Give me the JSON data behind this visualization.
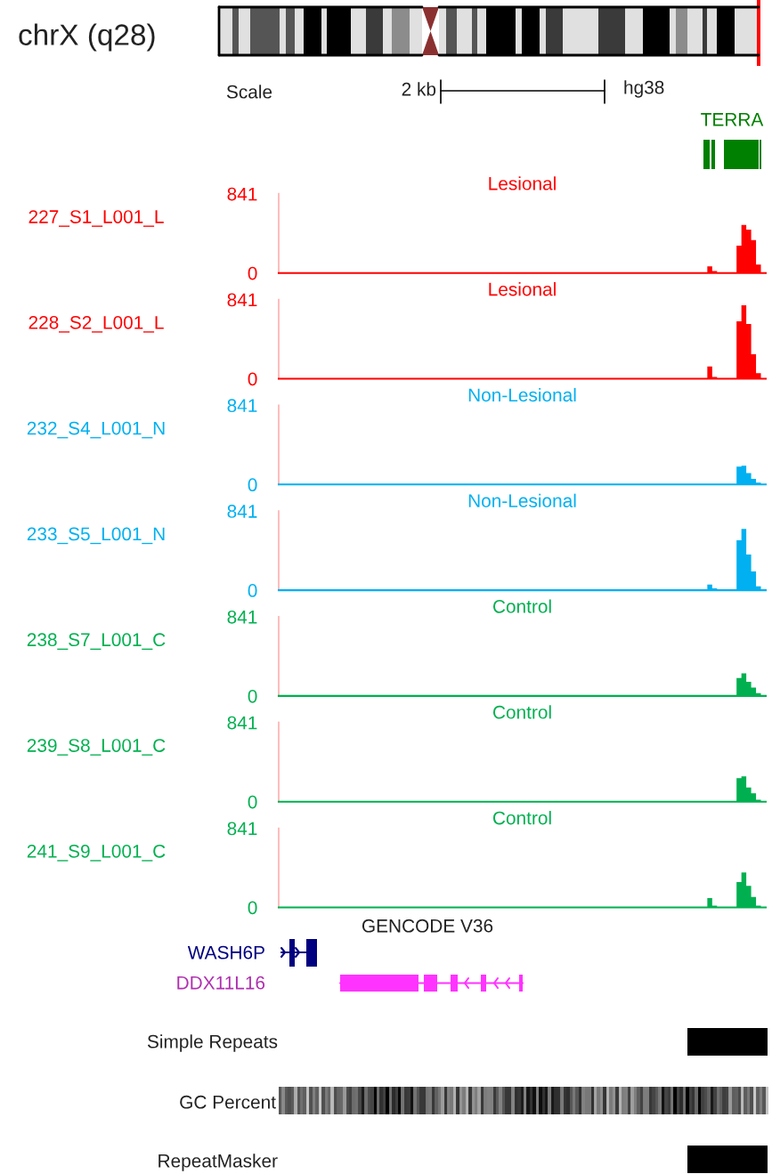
{
  "chart_data": [
    {
      "type": "other",
      "title": "chrX (q28)",
      "annotations": [
        "Scale",
        "2 kb",
        "hg38",
        "TERRA"
      ]
    },
    {
      "type": "area",
      "title": "Lesional",
      "ylabel": "227_S1_L001_L",
      "tick_labels": "y",
      "ylim": [
        0,
        841
      ],
      "yticks": [
        0,
        841
      ],
      "categories": [
        null,
        null,
        null,
        null,
        null,
        null,
        null,
        null,
        null,
        null,
        null,
        null,
        null,
        null,
        null,
        null,
        null,
        null,
        null,
        null,
        null,
        null,
        null,
        null,
        null,
        null,
        null,
        null,
        null,
        null,
        null,
        null,
        null,
        null,
        null,
        null,
        null,
        null,
        null,
        null,
        null,
        null,
        null,
        null,
        null,
        null,
        null,
        null,
        null,
        null,
        null,
        null,
        null,
        null,
        null,
        null,
        null,
        null,
        null,
        null,
        null,
        null,
        null,
        null,
        null,
        null,
        null,
        null,
        null,
        null,
        null,
        null,
        null,
        null,
        null,
        null,
        null,
        null,
        null,
        null,
        null,
        null,
        null,
        null,
        null,
        null,
        null,
        null,
        null,
        null,
        null,
        null,
        null,
        null,
        null,
        null,
        null,
        null,
        null,
        null
      ],
      "series": [
        {
          "color": "#ff0000",
          "values": [
            0,
            0,
            0,
            0,
            0,
            0,
            0,
            0,
            0,
            0,
            0,
            0,
            0,
            0,
            0,
            0,
            0,
            0,
            0,
            0,
            0,
            0,
            0,
            0,
            0,
            0,
            0,
            0,
            0,
            0,
            0,
            0,
            0,
            0,
            0,
            0,
            0,
            0,
            0,
            0,
            0,
            0,
            0,
            0,
            0,
            0,
            0,
            0,
            0,
            0,
            0,
            0,
            0,
            0,
            0,
            0,
            0,
            0,
            0,
            0,
            0,
            0,
            0,
            0,
            0,
            0,
            0,
            0,
            0,
            0,
            0,
            0,
            0,
            0,
            0,
            0,
            0,
            0,
            0,
            0,
            0,
            0,
            0,
            0,
            0,
            0,
            0,
            0,
            70,
            20,
            0,
            0,
            0,
            0,
            290,
            510,
            460,
            350,
            90,
            0
          ]
        }
      ]
    },
    {
      "type": "area",
      "title": "Lesional",
      "ylabel": "228_S2_L001_L",
      "tick_labels": "y",
      "ylim": [
        0,
        841
      ],
      "yticks": [
        0,
        841
      ],
      "categories": [
        null,
        null,
        null,
        null,
        null,
        null,
        null,
        null,
        null,
        null,
        null,
        null,
        null,
        null,
        null,
        null,
        null,
        null,
        null,
        null,
        null,
        null,
        null,
        null,
        null,
        null,
        null,
        null,
        null,
        null,
        null,
        null,
        null,
        null,
        null,
        null,
        null,
        null,
        null,
        null,
        null,
        null,
        null,
        null,
        null,
        null,
        null,
        null,
        null,
        null,
        null,
        null,
        null,
        null,
        null,
        null,
        null,
        null,
        null,
        null,
        null,
        null,
        null,
        null,
        null,
        null,
        null,
        null,
        null,
        null,
        null,
        null,
        null,
        null,
        null,
        null,
        null,
        null,
        null,
        null,
        null,
        null,
        null,
        null,
        null,
        null,
        null,
        null,
        null,
        null,
        null,
        null,
        null,
        null,
        null,
        null,
        null,
        null,
        null,
        null
      ],
      "series": [
        {
          "color": "#ff0000",
          "values": [
            0,
            0,
            0,
            0,
            0,
            0,
            0,
            0,
            0,
            0,
            0,
            0,
            0,
            0,
            0,
            0,
            0,
            0,
            0,
            0,
            0,
            0,
            0,
            0,
            0,
            0,
            0,
            0,
            0,
            0,
            0,
            0,
            0,
            0,
            0,
            0,
            0,
            0,
            0,
            0,
            0,
            0,
            0,
            0,
            0,
            0,
            0,
            0,
            0,
            0,
            0,
            0,
            0,
            0,
            0,
            0,
            0,
            0,
            0,
            0,
            0,
            0,
            0,
            0,
            0,
            0,
            0,
            0,
            0,
            0,
            0,
            0,
            0,
            0,
            0,
            0,
            0,
            0,
            0,
            0,
            0,
            0,
            0,
            0,
            0,
            0,
            0,
            0,
            130,
            20,
            0,
            0,
            0,
            0,
            610,
            780,
            580,
            260,
            60,
            0
          ]
        }
      ]
    },
    {
      "type": "area",
      "title": "Non-Lesional",
      "ylabel": "232_S4_L001_N",
      "tick_labels": "y",
      "ylim": [
        0,
        841
      ],
      "yticks": [
        0,
        841
      ],
      "categories": [
        null,
        null,
        null,
        null,
        null,
        null,
        null,
        null,
        null,
        null,
        null,
        null,
        null,
        null,
        null,
        null,
        null,
        null,
        null,
        null,
        null,
        null,
        null,
        null,
        null,
        null,
        null,
        null,
        null,
        null,
        null,
        null,
        null,
        null,
        null,
        null,
        null,
        null,
        null,
        null,
        null,
        null,
        null,
        null,
        null,
        null,
        null,
        null,
        null,
        null,
        null,
        null,
        null,
        null,
        null,
        null,
        null,
        null,
        null,
        null,
        null,
        null,
        null,
        null,
        null,
        null,
        null,
        null,
        null,
        null,
        null,
        null,
        null,
        null,
        null,
        null,
        null,
        null,
        null,
        null,
        null,
        null,
        null,
        null,
        null,
        null,
        null,
        null,
        null,
        null,
        null,
        null,
        null,
        null,
        null,
        null,
        null,
        null,
        null,
        null
      ],
      "series": [
        {
          "color": "#00b0f0",
          "values": [
            0,
            0,
            0,
            0,
            0,
            0,
            0,
            0,
            0,
            0,
            0,
            0,
            0,
            0,
            0,
            0,
            0,
            0,
            0,
            0,
            0,
            0,
            0,
            0,
            0,
            0,
            0,
            0,
            0,
            0,
            0,
            0,
            0,
            0,
            0,
            0,
            0,
            0,
            0,
            0,
            0,
            0,
            0,
            0,
            0,
            0,
            0,
            0,
            0,
            0,
            0,
            0,
            0,
            0,
            0,
            0,
            0,
            0,
            0,
            0,
            0,
            0,
            0,
            0,
            0,
            0,
            0,
            0,
            0,
            0,
            0,
            0,
            0,
            0,
            0,
            0,
            0,
            0,
            0,
            0,
            0,
            0,
            0,
            0,
            0,
            0,
            0,
            0,
            0,
            0,
            0,
            0,
            0,
            0,
            190,
            200,
            120,
            60,
            20,
            0
          ]
        }
      ]
    },
    {
      "type": "area",
      "title": "Non-Lesional",
      "ylabel": "233_S5_L001_N",
      "tick_labels": "y",
      "ylim": [
        0,
        841
      ],
      "yticks": [
        0,
        841
      ],
      "categories": [
        null,
        null,
        null,
        null,
        null,
        null,
        null,
        null,
        null,
        null,
        null,
        null,
        null,
        null,
        null,
        null,
        null,
        null,
        null,
        null,
        null,
        null,
        null,
        null,
        null,
        null,
        null,
        null,
        null,
        null,
        null,
        null,
        null,
        null,
        null,
        null,
        null,
        null,
        null,
        null,
        null,
        null,
        null,
        null,
        null,
        null,
        null,
        null,
        null,
        null,
        null,
        null,
        null,
        null,
        null,
        null,
        null,
        null,
        null,
        null,
        null,
        null,
        null,
        null,
        null,
        null,
        null,
        null,
        null,
        null,
        null,
        null,
        null,
        null,
        null,
        null,
        null,
        null,
        null,
        null,
        null,
        null,
        null,
        null,
        null,
        null,
        null,
        null,
        null,
        null,
        null,
        null,
        null,
        null,
        null,
        null,
        null,
        null,
        null,
        null
      ],
      "series": [
        {
          "color": "#00b0f0",
          "values": [
            0,
            0,
            0,
            0,
            0,
            0,
            0,
            0,
            0,
            0,
            0,
            0,
            0,
            0,
            0,
            0,
            0,
            0,
            0,
            0,
            0,
            0,
            0,
            0,
            0,
            0,
            0,
            0,
            0,
            0,
            0,
            0,
            0,
            0,
            0,
            0,
            0,
            0,
            0,
            0,
            0,
            0,
            0,
            0,
            0,
            0,
            0,
            0,
            0,
            0,
            0,
            0,
            0,
            0,
            0,
            0,
            0,
            0,
            0,
            0,
            0,
            0,
            0,
            0,
            0,
            0,
            0,
            0,
            0,
            0,
            0,
            0,
            0,
            0,
            0,
            0,
            0,
            0,
            0,
            0,
            0,
            0,
            0,
            0,
            0,
            0,
            0,
            0,
            60,
            20,
            0,
            0,
            0,
            0,
            530,
            650,
            380,
            200,
            40,
            0
          ]
        }
      ]
    },
    {
      "type": "area",
      "title": "Control",
      "ylabel": "238_S7_L001_C",
      "tick_labels": "y",
      "ylim": [
        0,
        841
      ],
      "yticks": [
        0,
        841
      ],
      "categories": [
        null,
        null,
        null,
        null,
        null,
        null,
        null,
        null,
        null,
        null,
        null,
        null,
        null,
        null,
        null,
        null,
        null,
        null,
        null,
        null,
        null,
        null,
        null,
        null,
        null,
        null,
        null,
        null,
        null,
        null,
        null,
        null,
        null,
        null,
        null,
        null,
        null,
        null,
        null,
        null,
        null,
        null,
        null,
        null,
        null,
        null,
        null,
        null,
        null,
        null,
        null,
        null,
        null,
        null,
        null,
        null,
        null,
        null,
        null,
        null,
        null,
        null,
        null,
        null,
        null,
        null,
        null,
        null,
        null,
        null,
        null,
        null,
        null,
        null,
        null,
        null,
        null,
        null,
        null,
        null,
        null,
        null,
        null,
        null,
        null,
        null,
        null,
        null,
        null,
        null,
        null,
        null,
        null,
        null,
        null,
        null,
        null,
        null,
        null,
        null
      ],
      "series": [
        {
          "color": "#00b050",
          "values": [
            0,
            0,
            0,
            0,
            0,
            0,
            0,
            0,
            0,
            0,
            0,
            0,
            0,
            0,
            0,
            0,
            0,
            0,
            0,
            0,
            0,
            0,
            0,
            0,
            0,
            0,
            0,
            0,
            0,
            0,
            0,
            0,
            0,
            0,
            0,
            0,
            0,
            0,
            0,
            0,
            0,
            0,
            0,
            0,
            0,
            0,
            0,
            0,
            0,
            0,
            0,
            0,
            0,
            0,
            0,
            0,
            0,
            0,
            0,
            0,
            0,
            0,
            0,
            0,
            0,
            0,
            0,
            0,
            0,
            0,
            0,
            0,
            0,
            0,
            0,
            0,
            0,
            0,
            0,
            0,
            0,
            0,
            0,
            0,
            0,
            0,
            0,
            0,
            0,
            0,
            0,
            0,
            0,
            0,
            190,
            240,
            150,
            90,
            30,
            0
          ]
        }
      ]
    },
    {
      "type": "area",
      "title": "Control",
      "ylabel": "239_S8_L001_C",
      "tick_labels": "y",
      "ylim": [
        0,
        841
      ],
      "yticks": [
        0,
        841
      ],
      "categories": [
        null,
        null,
        null,
        null,
        null,
        null,
        null,
        null,
        null,
        null,
        null,
        null,
        null,
        null,
        null,
        null,
        null,
        null,
        null,
        null,
        null,
        null,
        null,
        null,
        null,
        null,
        null,
        null,
        null,
        null,
        null,
        null,
        null,
        null,
        null,
        null,
        null,
        null,
        null,
        null,
        null,
        null,
        null,
        null,
        null,
        null,
        null,
        null,
        null,
        null,
        null,
        null,
        null,
        null,
        null,
        null,
        null,
        null,
        null,
        null,
        null,
        null,
        null,
        null,
        null,
        null,
        null,
        null,
        null,
        null,
        null,
        null,
        null,
        null,
        null,
        null,
        null,
        null,
        null,
        null,
        null,
        null,
        null,
        null,
        null,
        null,
        null,
        null,
        null,
        null,
        null,
        null,
        null,
        null,
        null,
        null,
        null,
        null,
        null,
        null
      ],
      "series": [
        {
          "color": "#00b050",
          "values": [
            0,
            0,
            0,
            0,
            0,
            0,
            0,
            0,
            0,
            0,
            0,
            0,
            0,
            0,
            0,
            0,
            0,
            0,
            0,
            0,
            0,
            0,
            0,
            0,
            0,
            0,
            0,
            0,
            0,
            0,
            0,
            0,
            0,
            0,
            0,
            0,
            0,
            0,
            0,
            0,
            0,
            0,
            0,
            0,
            0,
            0,
            0,
            0,
            0,
            0,
            0,
            0,
            0,
            0,
            0,
            0,
            0,
            0,
            0,
            0,
            0,
            0,
            0,
            0,
            0,
            0,
            0,
            0,
            0,
            0,
            0,
            0,
            0,
            0,
            0,
            0,
            0,
            0,
            0,
            0,
            0,
            0,
            0,
            0,
            0,
            0,
            0,
            0,
            0,
            0,
            0,
            0,
            0,
            0,
            250,
            270,
            150,
            90,
            20,
            0
          ]
        }
      ]
    },
    {
      "type": "area",
      "title": "Control",
      "ylabel": "241_S9_L001_C",
      "tick_labels": "y",
      "ylim": [
        0,
        841
      ],
      "yticks": [
        0,
        841
      ],
      "categories": [
        null,
        null,
        null,
        null,
        null,
        null,
        null,
        null,
        null,
        null,
        null,
        null,
        null,
        null,
        null,
        null,
        null,
        null,
        null,
        null,
        null,
        null,
        null,
        null,
        null,
        null,
        null,
        null,
        null,
        null,
        null,
        null,
        null,
        null,
        null,
        null,
        null,
        null,
        null,
        null,
        null,
        null,
        null,
        null,
        null,
        null,
        null,
        null,
        null,
        null,
        null,
        null,
        null,
        null,
        null,
        null,
        null,
        null,
        null,
        null,
        null,
        null,
        null,
        null,
        null,
        null,
        null,
        null,
        null,
        null,
        null,
        null,
        null,
        null,
        null,
        null,
        null,
        null,
        null,
        null,
        null,
        null,
        null,
        null,
        null,
        null,
        null,
        null,
        null,
        null,
        null,
        null,
        null,
        null,
        null,
        null,
        null,
        null,
        null,
        null
      ],
      "series": [
        {
          "color": "#00b050",
          "values": [
            0,
            0,
            0,
            0,
            0,
            0,
            0,
            0,
            0,
            0,
            0,
            0,
            0,
            0,
            0,
            0,
            0,
            0,
            0,
            0,
            0,
            0,
            0,
            0,
            0,
            0,
            0,
            0,
            0,
            0,
            0,
            0,
            0,
            0,
            0,
            0,
            0,
            0,
            0,
            0,
            0,
            0,
            0,
            0,
            0,
            0,
            0,
            0,
            0,
            0,
            0,
            0,
            0,
            0,
            0,
            0,
            0,
            0,
            0,
            0,
            0,
            0,
            0,
            0,
            0,
            0,
            0,
            0,
            0,
            0,
            0,
            0,
            0,
            0,
            0,
            0,
            0,
            0,
            0,
            0,
            0,
            0,
            0,
            0,
            0,
            0,
            0,
            0,
            100,
            20,
            0,
            0,
            0,
            0,
            270,
            370,
            230,
            110,
            20,
            0
          ]
        }
      ]
    },
    {
      "type": "other",
      "annotations": [
        "GENCODE V36",
        "WASH6P",
        "DDX11L16",
        "Simple Repeats",
        "GC Percent",
        "RepeatMasker"
      ]
    }
  ]
}
